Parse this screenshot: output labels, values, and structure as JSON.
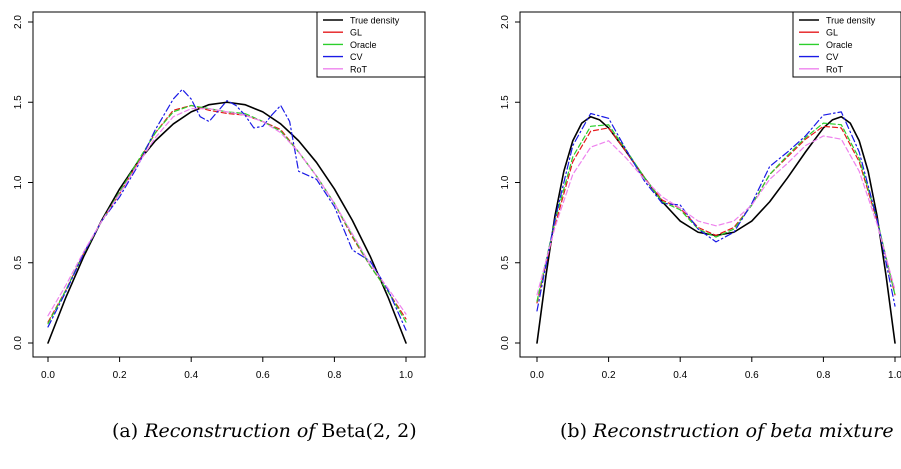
{
  "chart_data": [
    {
      "type": "line",
      "caption_label": "(a)",
      "caption_italic": "Reconstruction of",
      "caption_math": "Beta(2, 2)",
      "xlim": [
        0,
        1
      ],
      "ylim": [
        0,
        2
      ],
      "xticks": [
        "0.0",
        "0.2",
        "0.4",
        "0.6",
        "0.8",
        "1.0"
      ],
      "yticks": [
        "0.0",
        "0.5",
        "1.0",
        "1.5",
        "2.0"
      ],
      "legend_position": "top-right",
      "grid": false,
      "series": [
        {
          "name": "True density",
          "color": "#000000",
          "dash": "solid",
          "x": [
            0,
            0.05,
            0.1,
            0.15,
            0.2,
            0.25,
            0.3,
            0.35,
            0.4,
            0.45,
            0.5,
            0.55,
            0.6,
            0.65,
            0.7,
            0.75,
            0.8,
            0.85,
            0.9,
            0.95,
            1.0
          ],
          "y": [
            0,
            0.285,
            0.54,
            0.765,
            0.96,
            1.125,
            1.26,
            1.365,
            1.44,
            1.485,
            1.5,
            1.485,
            1.44,
            1.365,
            1.26,
            1.125,
            0.96,
            0.765,
            0.54,
            0.285,
            0
          ]
        },
        {
          "name": "GL",
          "color": "#e41a1c",
          "dash": "dashed",
          "x": [
            0,
            0.05,
            0.1,
            0.15,
            0.2,
            0.25,
            0.3,
            0.35,
            0.4,
            0.45,
            0.5,
            0.55,
            0.6,
            0.65,
            0.7,
            0.75,
            0.8,
            0.85,
            0.9,
            0.95,
            1.0
          ],
          "y": [
            0.13,
            0.33,
            0.56,
            0.76,
            0.93,
            1.12,
            1.31,
            1.45,
            1.48,
            1.45,
            1.43,
            1.42,
            1.38,
            1.33,
            1.19,
            1.04,
            0.87,
            0.66,
            0.48,
            0.32,
            0.15
          ]
        },
        {
          "name": "Oracle",
          "color": "#2ccf2c",
          "dash": "dashed",
          "x": [
            0,
            0.05,
            0.1,
            0.15,
            0.2,
            0.25,
            0.3,
            0.35,
            0.4,
            0.45,
            0.5,
            0.55,
            0.6,
            0.65,
            0.7,
            0.75,
            0.8,
            0.85,
            0.9,
            0.95,
            1.0
          ],
          "y": [
            0.12,
            0.33,
            0.56,
            0.76,
            0.94,
            1.13,
            1.31,
            1.44,
            1.48,
            1.46,
            1.44,
            1.43,
            1.38,
            1.32,
            1.19,
            1.04,
            0.87,
            0.67,
            0.48,
            0.32,
            0.13
          ]
        },
        {
          "name": "CV",
          "color": "#1a1ae6",
          "dash": "dashdot",
          "x": [
            0,
            0.05,
            0.1,
            0.15,
            0.2,
            0.25,
            0.3,
            0.35,
            0.375,
            0.4,
            0.425,
            0.45,
            0.5,
            0.525,
            0.55,
            0.575,
            0.6,
            0.625,
            0.65,
            0.675,
            0.7,
            0.75,
            0.8,
            0.85,
            0.9,
            0.95,
            1.0
          ],
          "y": [
            0.1,
            0.32,
            0.56,
            0.76,
            0.91,
            1.1,
            1.33,
            1.52,
            1.58,
            1.52,
            1.41,
            1.38,
            1.51,
            1.48,
            1.42,
            1.34,
            1.35,
            1.42,
            1.48,
            1.38,
            1.07,
            1.02,
            0.85,
            0.58,
            0.51,
            0.33,
            0.08
          ]
        },
        {
          "name": "RoT",
          "color": "#ee82ee",
          "dash": "dashed",
          "x": [
            0,
            0.05,
            0.1,
            0.15,
            0.2,
            0.25,
            0.3,
            0.35,
            0.4,
            0.45,
            0.5,
            0.55,
            0.6,
            0.65,
            0.7,
            0.75,
            0.8,
            0.85,
            0.9,
            0.95,
            1.0
          ],
          "y": [
            0.17,
            0.36,
            0.57,
            0.76,
            0.93,
            1.11,
            1.28,
            1.41,
            1.46,
            1.46,
            1.44,
            1.42,
            1.38,
            1.31,
            1.19,
            1.04,
            0.87,
            0.68,
            0.49,
            0.34,
            0.18
          ]
        }
      ]
    },
    {
      "type": "line",
      "caption_label": "(b)",
      "caption_italic": "Reconstruction of beta mixture",
      "caption_math": "",
      "xlim": [
        0,
        1
      ],
      "ylim": [
        0,
        2
      ],
      "xticks": [
        "0.0",
        "0.2",
        "0.4",
        "0.6",
        "0.8",
        "1.0"
      ],
      "yticks": [
        "0.0",
        "0.5",
        "1.0",
        "1.5",
        "2.0"
      ],
      "legend_position": "top-right",
      "grid": false,
      "series": [
        {
          "name": "True density",
          "color": "#000000",
          "dash": "solid",
          "x": [
            0,
            0.025,
            0.05,
            0.075,
            0.1,
            0.125,
            0.15,
            0.175,
            0.2,
            0.25,
            0.3,
            0.35,
            0.4,
            0.45,
            0.5,
            0.55,
            0.6,
            0.65,
            0.7,
            0.75,
            0.8,
            0.825,
            0.85,
            0.875,
            0.9,
            0.925,
            0.95,
            0.975,
            1.0
          ],
          "y": [
            0,
            0.42,
            0.79,
            1.07,
            1.26,
            1.37,
            1.41,
            1.39,
            1.34,
            1.19,
            1.03,
            0.88,
            0.76,
            0.69,
            0.67,
            0.69,
            0.76,
            0.88,
            1.03,
            1.19,
            1.34,
            1.39,
            1.41,
            1.37,
            1.26,
            1.07,
            0.79,
            0.42,
            0
          ]
        },
        {
          "name": "GL",
          "color": "#e41a1c",
          "dash": "dashed",
          "x": [
            0,
            0.05,
            0.1,
            0.15,
            0.2,
            0.25,
            0.3,
            0.35,
            0.4,
            0.45,
            0.5,
            0.55,
            0.6,
            0.65,
            0.7,
            0.75,
            0.8,
            0.85,
            0.9,
            0.95,
            1.0
          ],
          "y": [
            0.25,
            0.73,
            1.13,
            1.32,
            1.34,
            1.19,
            1.03,
            0.89,
            0.84,
            0.72,
            0.67,
            0.72,
            0.86,
            1.05,
            1.16,
            1.27,
            1.35,
            1.34,
            1.13,
            0.76,
            0.3
          ]
        },
        {
          "name": "Oracle",
          "color": "#2ccf2c",
          "dash": "dashed",
          "x": [
            0,
            0.05,
            0.1,
            0.15,
            0.2,
            0.25,
            0.3,
            0.35,
            0.4,
            0.45,
            0.5,
            0.55,
            0.6,
            0.65,
            0.7,
            0.75,
            0.8,
            0.85,
            0.9,
            0.95,
            1.0
          ],
          "y": [
            0.26,
            0.76,
            1.16,
            1.35,
            1.36,
            1.2,
            1.03,
            0.88,
            0.83,
            0.71,
            0.66,
            0.71,
            0.86,
            1.05,
            1.17,
            1.28,
            1.37,
            1.36,
            1.15,
            0.77,
            0.3
          ]
        },
        {
          "name": "CV",
          "color": "#1a1ae6",
          "dash": "dashdot",
          "x": [
            0,
            0.05,
            0.1,
            0.15,
            0.2,
            0.25,
            0.3,
            0.35,
            0.4,
            0.45,
            0.5,
            0.55,
            0.6,
            0.65,
            0.7,
            0.75,
            0.8,
            0.85,
            0.9,
            0.95,
            1.0
          ],
          "y": [
            0.2,
            0.77,
            1.23,
            1.43,
            1.4,
            1.2,
            1.01,
            0.87,
            0.86,
            0.71,
            0.63,
            0.69,
            0.87,
            1.1,
            1.19,
            1.29,
            1.42,
            1.44,
            1.19,
            0.77,
            0.23
          ]
        },
        {
          "name": "RoT",
          "color": "#ee82ee",
          "dash": "dashed",
          "x": [
            0,
            0.05,
            0.1,
            0.15,
            0.2,
            0.25,
            0.3,
            0.35,
            0.4,
            0.45,
            0.5,
            0.55,
            0.6,
            0.65,
            0.7,
            0.75,
            0.8,
            0.85,
            0.9,
            0.95,
            1.0
          ],
          "y": [
            0.3,
            0.72,
            1.05,
            1.22,
            1.26,
            1.15,
            1.02,
            0.91,
            0.84,
            0.76,
            0.73,
            0.76,
            0.86,
            1.02,
            1.12,
            1.23,
            1.29,
            1.27,
            1.07,
            0.74,
            0.33
          ]
        }
      ]
    }
  ]
}
